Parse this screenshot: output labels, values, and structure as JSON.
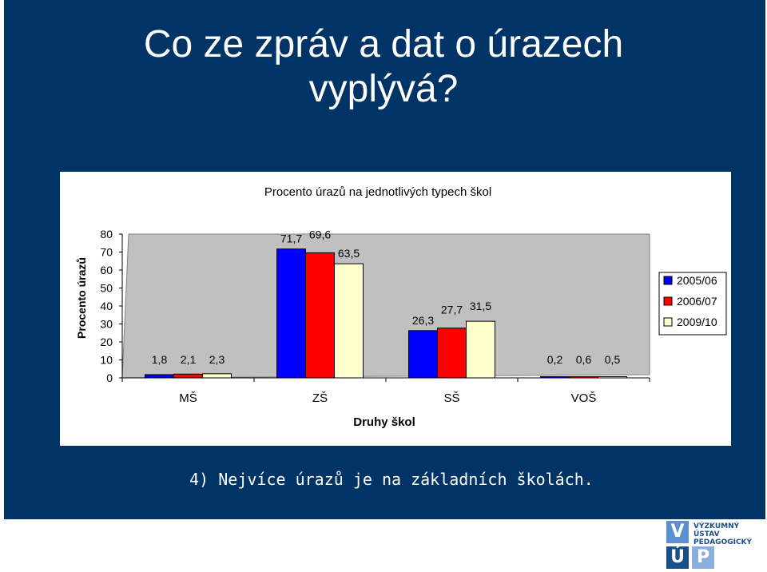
{
  "slide": {
    "title_line1": "Co ze zpráv a dat o úrazech",
    "title_line2": "vyplývá?",
    "caption": "4) Nejvíce úrazů je na základních školách.",
    "bg_color": "#003366"
  },
  "logo": {
    "letters": [
      "V",
      "Ú",
      "P"
    ],
    "line1": "VÝZKUMNÝ",
    "line2": "ÚSTAV",
    "line3": "PEDAGOGICKÝ"
  },
  "chart_data": {
    "type": "bar",
    "title": "Procento úrazů na jednotlivých typech škol",
    "xlabel": "Druhy škol",
    "ylabel": "Procento úrazů",
    "ylim": [
      0,
      80
    ],
    "yticks": [
      0,
      10,
      20,
      30,
      40,
      50,
      60,
      70,
      80
    ],
    "categories": [
      "MŠ",
      "ZŠ",
      "SŠ",
      "VOŠ"
    ],
    "series": [
      {
        "name": "2005/06",
        "color": "#0000ff",
        "values": [
          1.8,
          71.7,
          26.3,
          0.2
        ],
        "labels": [
          "1,8",
          "71,7",
          "26,3",
          "0,2"
        ]
      },
      {
        "name": "2006/07",
        "color": "#ff0000",
        "values": [
          2.1,
          69.6,
          27.7,
          0.6
        ],
        "labels": [
          "2,1",
          "69,6",
          "27,7",
          "0,6"
        ]
      },
      {
        "name": "2009/10",
        "color": "#ffffcc",
        "values": [
          2.3,
          63.5,
          31.5,
          0.5
        ],
        "labels": [
          "2,3",
          "63,5",
          "31,5",
          "0,5"
        ]
      }
    ],
    "grid": false,
    "plot_bg": "#c0c0c0",
    "legend": "right"
  }
}
